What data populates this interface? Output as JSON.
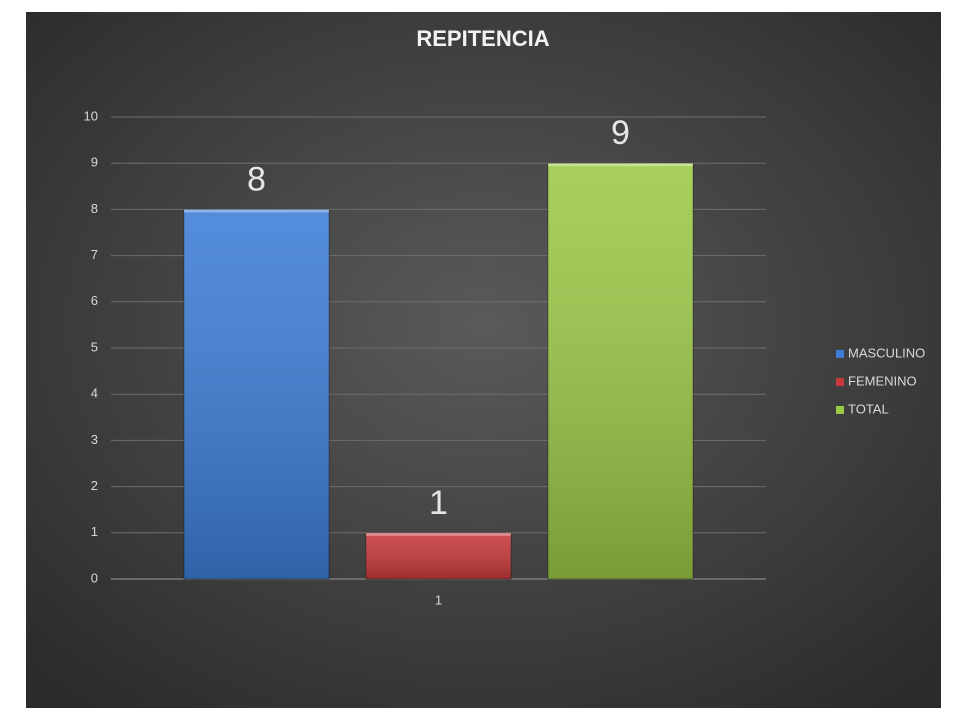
{
  "chart_data": {
    "type": "bar",
    "title": "REPITENCIA",
    "categories": [
      "1"
    ],
    "series": [
      {
        "name": "MASCULINO",
        "color": "#3c7dd6",
        "values": [
          8
        ]
      },
      {
        "name": "FEMENINO",
        "color": "#c8393b",
        "values": [
          1
        ]
      },
      {
        "name": "TOTAL",
        "color": "#9cc847",
        "values": [
          9
        ]
      }
    ],
    "ylim": [
      0,
      10
    ],
    "yticks": [
      0,
      1,
      2,
      3,
      4,
      5,
      6,
      7,
      8,
      9,
      10
    ],
    "grid": true,
    "legend": "right",
    "data_labels": true
  }
}
